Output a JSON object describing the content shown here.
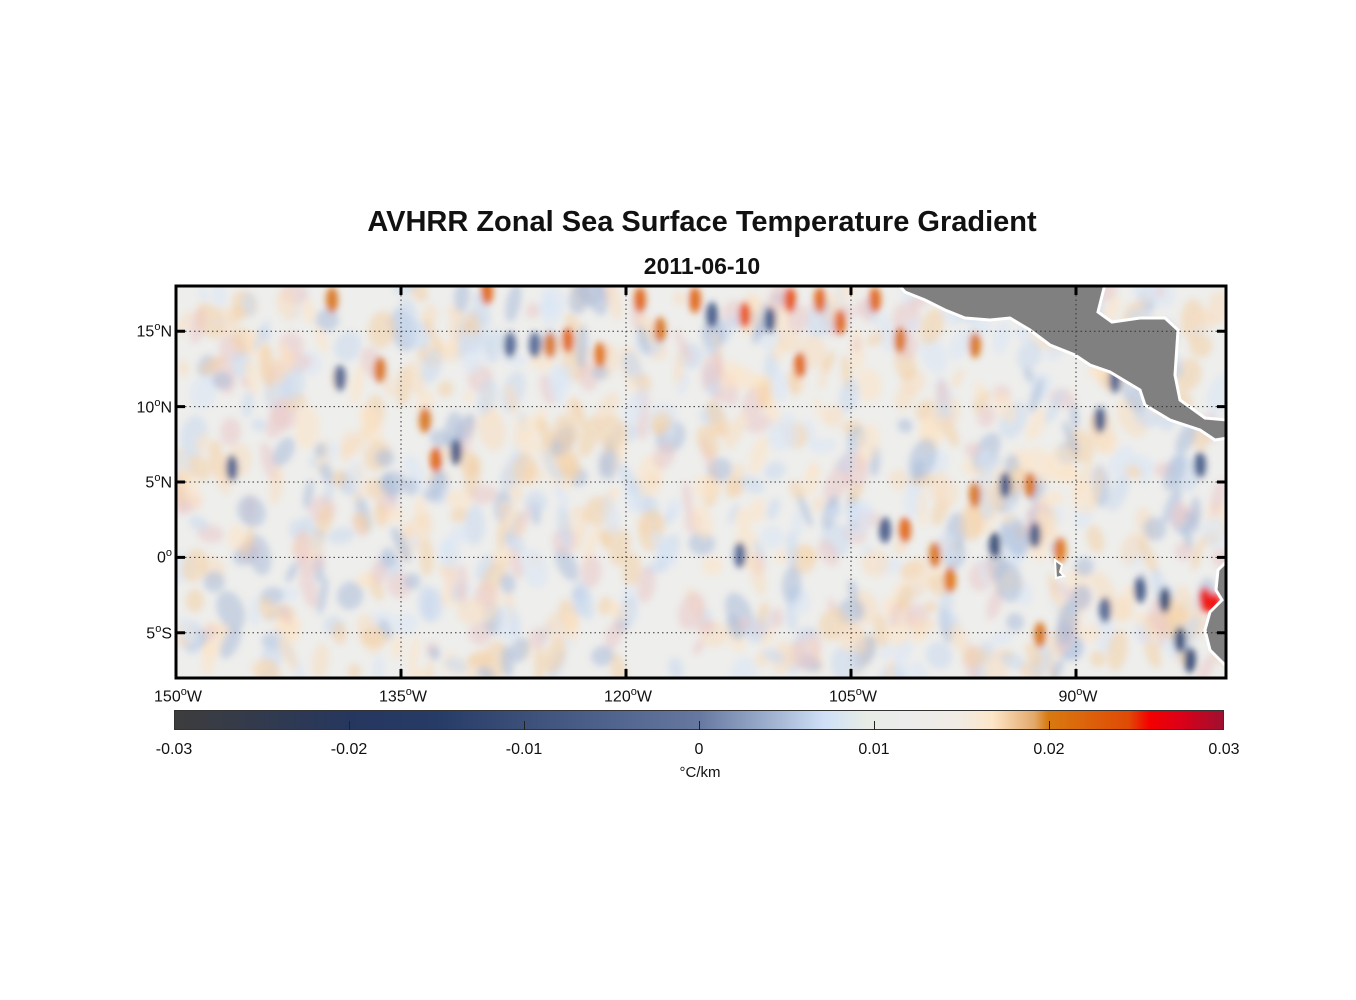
{
  "title": "AVHRR Zonal Sea Surface Temperature Gradient",
  "subtitle": "2011-06-10",
  "map": {
    "lon_range": [
      -150,
      -80
    ],
    "lat_range": [
      -8,
      18
    ],
    "x_ticks": [
      {
        "value": -150,
        "num": "150",
        "hemi": "W"
      },
      {
        "value": -135,
        "num": "135",
        "hemi": "W"
      },
      {
        "value": -120,
        "num": "120",
        "hemi": "W"
      },
      {
        "value": -105,
        "num": "105",
        "hemi": "W"
      },
      {
        "value": -90,
        "num": "90",
        "hemi": "W"
      }
    ],
    "y_ticks": [
      {
        "value": 15,
        "num": "15",
        "hemi": "N"
      },
      {
        "value": 10,
        "num": "10",
        "hemi": "N"
      },
      {
        "value": 5,
        "num": "5",
        "hemi": "N"
      },
      {
        "value": 0,
        "num": "0",
        "hemi": ""
      },
      {
        "value": -5,
        "num": "5",
        "hemi": "S"
      }
    ],
    "grid": "dotted",
    "land_color": "#808080"
  },
  "colorbar": {
    "min": -0.03,
    "max": 0.03,
    "ticks": [
      "-0.03",
      "-0.02",
      "-0.01",
      "0",
      "0.01",
      "0.02",
      "0.03"
    ],
    "label": "°C/km",
    "colors": {
      "neg_max": "#3d3d3d",
      "neg": "#263b66",
      "zero": "#ececec",
      "pos": "#d87a10",
      "pos_max": "#9e1030"
    }
  }
}
